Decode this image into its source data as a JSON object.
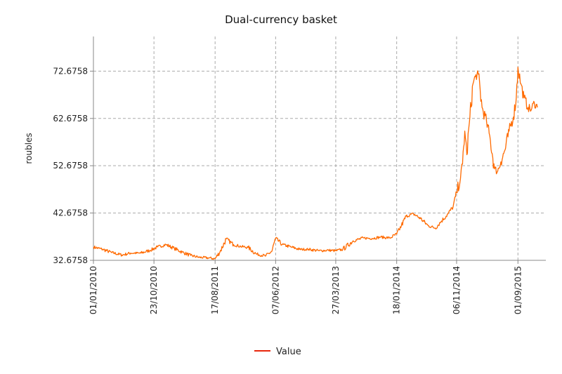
{
  "chart_data": {
    "type": "line",
    "title": "Dual-currency basket",
    "xlabel": "",
    "ylabel": "roubles",
    "ylim": [
      32.6758,
      80.0
    ],
    "xlim": [
      "2010-01-01",
      "2016-01-15"
    ],
    "yticks": [
      32.6758,
      42.6758,
      52.6758,
      62.6758,
      72.6758
    ],
    "ytick_labels": [
      "32.6758",
      "42.6758",
      "52.6758",
      "62.6758",
      "72.6758"
    ],
    "xticks": [
      "2010-01-01",
      "2010-10-23",
      "2011-08-17",
      "2012-06-07",
      "2013-03-27",
      "2014-01-18",
      "2014-11-06",
      "2015-09-01"
    ],
    "xtick_labels": [
      "01/01/2010",
      "23/10/2010",
      "17/08/2011",
      "07/06/2012",
      "27/03/2013",
      "18/01/2014",
      "06/11/2014",
      "01/09/2015"
    ],
    "grid": true,
    "legend": "bottom-center",
    "series": [
      {
        "name": "Value",
        "color": "#ff6a00",
        "x": [
          "2010-01-01",
          "2010-02-15",
          "2010-04-01",
          "2010-05-20",
          "2010-07-01",
          "2010-08-20",
          "2010-10-05",
          "2010-11-10",
          "2010-12-20",
          "2011-01-30",
          "2011-03-10",
          "2011-04-20",
          "2011-06-01",
          "2011-07-15",
          "2011-08-17",
          "2011-09-10",
          "2011-10-10",
          "2011-11-15",
          "2011-12-20",
          "2012-01-25",
          "2012-03-05",
          "2012-04-20",
          "2012-05-20",
          "2012-06-07",
          "2012-07-10",
          "2012-08-20",
          "2012-10-01",
          "2012-11-15",
          "2013-01-05",
          "2013-02-20",
          "2013-03-27",
          "2013-05-01",
          "2013-06-20",
          "2013-08-10",
          "2013-09-20",
          "2013-11-01",
          "2013-12-15",
          "2014-01-18",
          "2014-02-10",
          "2014-03-05",
          "2014-04-10",
          "2014-05-15",
          "2014-06-20",
          "2014-07-25",
          "2014-08-25",
          "2014-09-25",
          "2014-10-20",
          "2014-11-06",
          "2014-11-25",
          "2014-12-05",
          "2014-12-16",
          "2014-12-26",
          "2015-01-10",
          "2015-01-25",
          "2015-02-05",
          "2015-02-20",
          "2015-03-10",
          "2015-04-01",
          "2015-04-20",
          "2015-05-10",
          "2015-05-25",
          "2015-06-10",
          "2015-06-30",
          "2015-07-20",
          "2015-08-10",
          "2015-08-24",
          "2015-09-01",
          "2015-09-15",
          "2015-10-01",
          "2015-10-20",
          "2015-11-05",
          "2015-11-20",
          "2015-12-05"
        ],
        "y": [
          35.5,
          35.0,
          34.3,
          33.8,
          34.2,
          34.2,
          34.8,
          35.5,
          36.0,
          35.2,
          34.4,
          33.7,
          33.3,
          33.2,
          33.0,
          34.5,
          37.2,
          36.0,
          35.6,
          35.4,
          34.0,
          33.6,
          34.6,
          37.3,
          36.0,
          35.5,
          35.0,
          35.0,
          34.7,
          34.8,
          34.7,
          35.0,
          36.8,
          37.4,
          37.3,
          37.6,
          37.4,
          38.2,
          40.0,
          42.0,
          42.5,
          41.5,
          40.0,
          39.5,
          41.0,
          42.5,
          44.0,
          47.0,
          50.0,
          53.0,
          60.0,
          55.0,
          63.0,
          70.0,
          71.5,
          72.0,
          65.0,
          62.0,
          58.0,
          52.0,
          51.5,
          53.5,
          56.0,
          60.0,
          63.0,
          67.0,
          73.5,
          70.0,
          67.0,
          65.0,
          64.5,
          66.0,
          65.0
        ]
      }
    ]
  }
}
